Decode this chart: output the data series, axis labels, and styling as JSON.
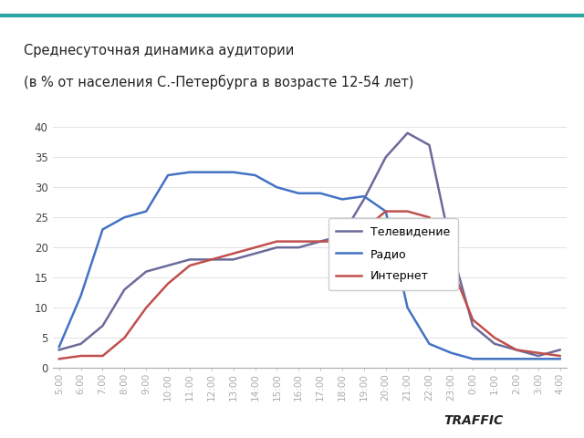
{
  "title_line1": "Среднесуточная динамика аудитории",
  "title_line2": "(в % от населения С.-Петербурга в возрасте 12-54 лет)",
  "x_labels": [
    "5:00",
    "6:00",
    "7:00",
    "8:00",
    "9:00",
    "10:00",
    "11:00",
    "12:00",
    "13:00",
    "14:00",
    "15:00",
    "16:00",
    "17:00",
    "18:00",
    "19:00",
    "20:00",
    "21:00",
    "22:00",
    "23:00",
    "0:00",
    "1:00",
    "2:00",
    "3:00",
    "4:00"
  ],
  "tv": [
    3,
    4,
    7,
    13,
    16,
    17,
    18,
    18,
    18,
    19,
    20,
    20,
    21,
    22,
    28,
    35,
    39,
    37,
    20,
    7,
    4,
    3,
    2,
    3
  ],
  "radio": [
    3.5,
    12,
    23,
    25,
    26,
    32,
    32.5,
    32.5,
    32.5,
    32,
    30,
    29,
    29,
    28,
    28.5,
    26,
    10,
    4,
    2.5,
    1.5,
    1.5,
    1.5,
    1.5,
    1.5
  ],
  "internet": [
    1.5,
    2,
    2,
    5,
    10,
    14,
    17,
    18,
    19,
    20,
    21,
    21,
    21,
    21,
    23,
    26,
    26,
    25,
    17,
    8,
    5,
    3,
    2.5,
    2
  ],
  "tv_color": "#6b6b9b",
  "radio_color": "#4472c4",
  "internet_color": "#c0504d",
  "ylim": [
    0,
    40
  ],
  "yticks": [
    0,
    5,
    10,
    15,
    20,
    25,
    30,
    35,
    40
  ],
  "legend_labels": [
    "Телевидение",
    "Радио",
    "Интернет"
  ],
  "bg_color": "#ffffff",
  "top_bar_color": "#2ca5a5",
  "linewidth": 1.8
}
